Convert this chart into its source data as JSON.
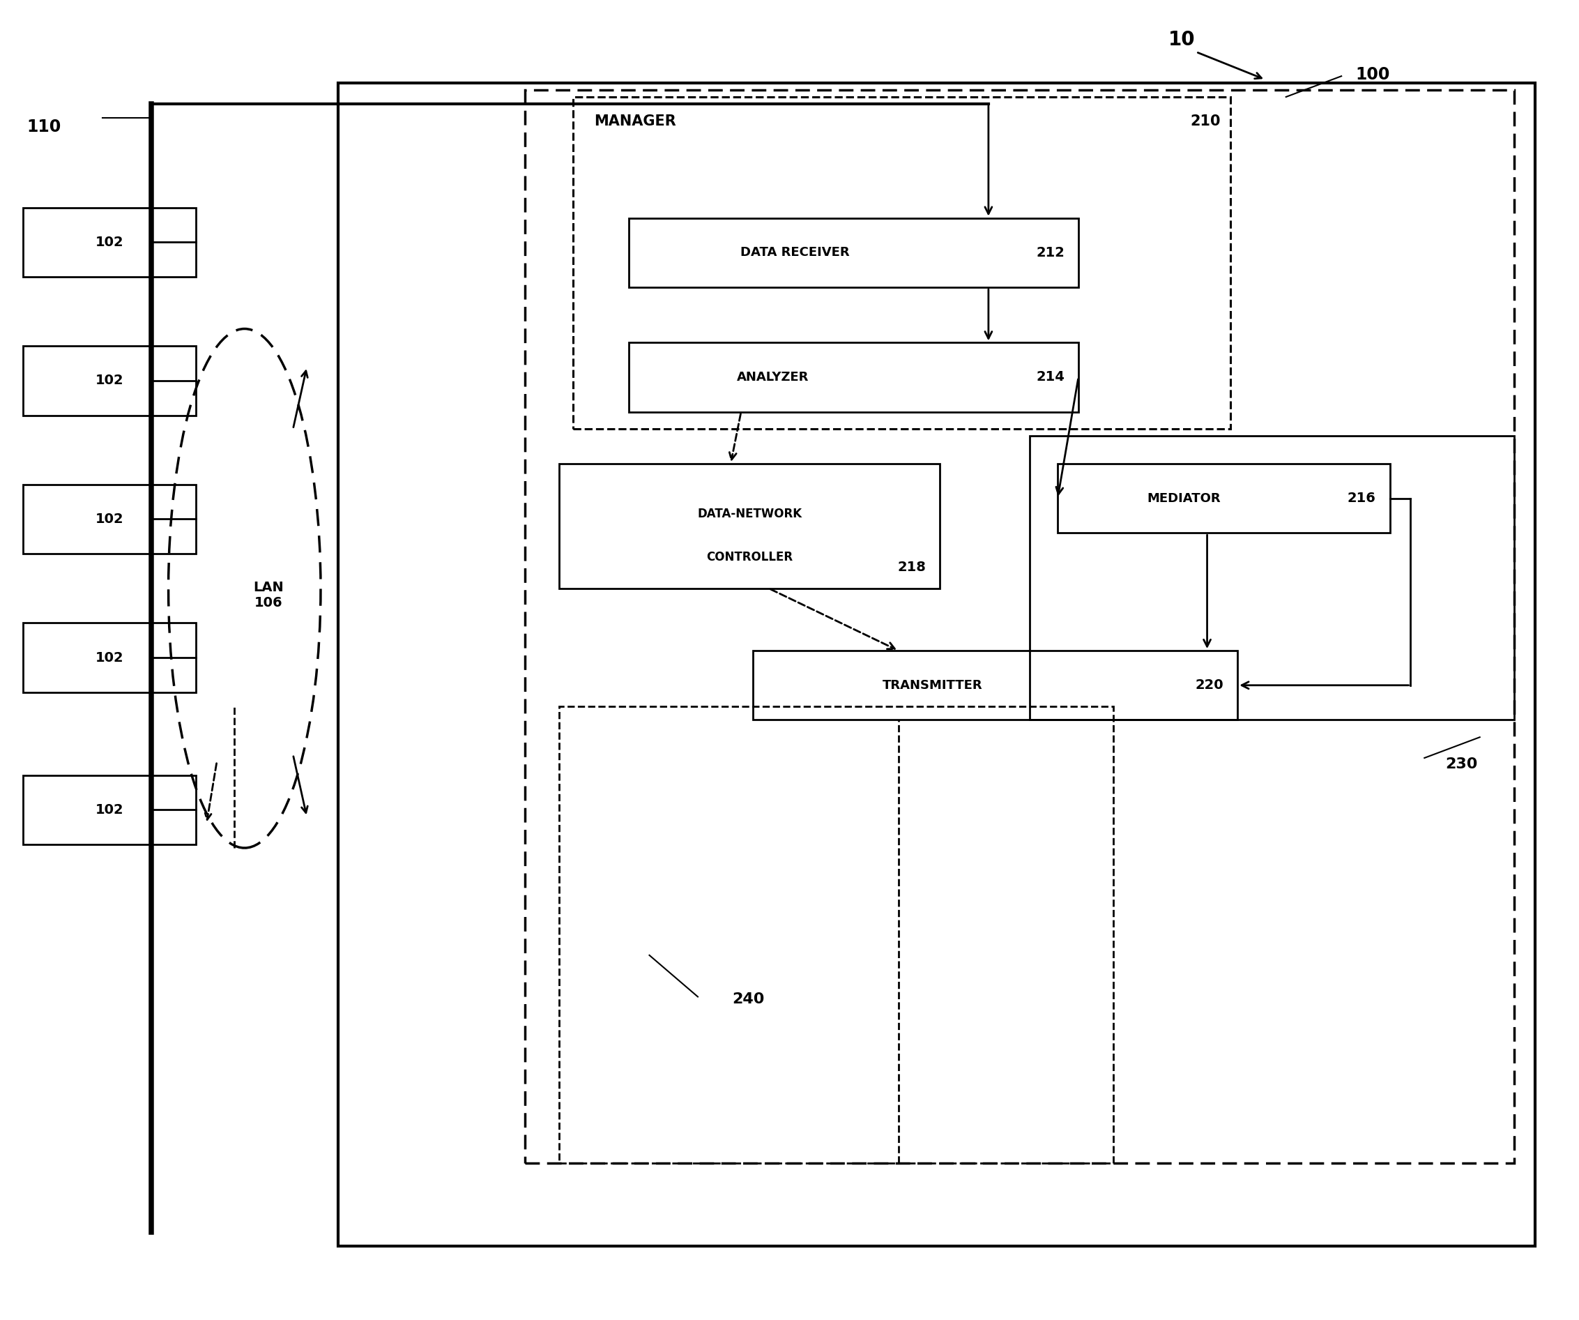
{
  "bg_color": "#ffffff",
  "line_color": "#000000",
  "fig_label": "10",
  "label_110": "110",
  "label_100": "100",
  "label_102": "102",
  "label_106": "LAN\n106",
  "label_210": "210",
  "label_212": "212",
  "label_214": "214",
  "label_216": "216",
  "label_218": "218",
  "label_220": "220",
  "label_230": "230",
  "label_240": "240",
  "text_manager": "MANAGER",
  "text_data_receiver": "DATA RECEIVER",
  "text_analyzer": "ANALYZER",
  "text_mediator": "MEDIATOR",
  "text_dnc": "DATA-NETWORK\nCONTROLLER",
  "text_transmitter": "TRANSMITTER"
}
